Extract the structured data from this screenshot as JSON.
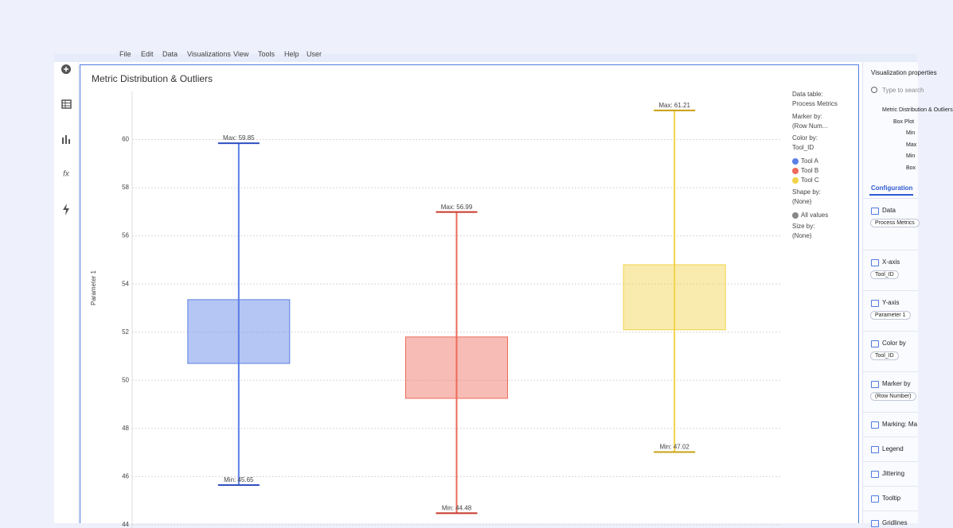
{
  "menu": [
    "File",
    "Edit",
    "Data",
    "Visualizations",
    "View",
    "Tools",
    "Help",
    "User"
  ],
  "chart_data": {
    "type": "box",
    "title": "Metric Distribution & Outliers",
    "y_label": "Parameter 1",
    "grid": true,
    "ylim": [
      43.6,
      62
    ],
    "yticks": [
      44,
      46,
      48,
      50,
      52,
      54,
      56,
      58,
      60
    ],
    "series": [
      {
        "name": "Tool A",
        "color": "#5b7fe6",
        "cap_color": "#2f4fc0",
        "min": 45.65,
        "q1": 50.7,
        "q3": 53.35,
        "max": 59.85,
        "min_label": "Min: 45.65",
        "max_label": "Max: 59.85"
      },
      {
        "name": "Tool B",
        "color": "#ee6a5a",
        "cap_color": "#c8392c",
        "min": 44.48,
        "q1": 49.25,
        "q3": 51.8,
        "max": 56.99,
        "min_label": "Min: 44.48",
        "max_label": "Max: 56.99"
      },
      {
        "name": "Tool C",
        "color": "#f2d34a",
        "cap_color": "#c9a012",
        "min": 47.02,
        "q1": 52.1,
        "q3": 54.8,
        "max": 61.21,
        "min_label": "Min: 47.02",
        "max_label": "Max: 61.21"
      }
    ],
    "legend": {
      "data_table_label": "Data table:",
      "data_table": "Process Metrics",
      "marker_by_label": "Marker by:",
      "marker_by": "(Row Num...",
      "color_by_label": "Color by:",
      "color_by": "Tool_ID",
      "shape_by_label": "Shape by:",
      "shape_by": "(None)",
      "shape_item": "All values",
      "size_by_label": "Size by:",
      "size_by": "(None)"
    }
  },
  "panel": {
    "title": "Visualization properties",
    "search": "Type to search",
    "tree": [
      "Metric Distribution & Outliers",
      "Box Plot",
      "Min",
      "Max",
      "Min",
      "Box"
    ],
    "tab": "Configuration",
    "sections": [
      {
        "name": "Data",
        "value": "Process Metrics"
      },
      {
        "name": "X-axis",
        "value": "Tool_ID"
      },
      {
        "name": "Y-axis",
        "value": "Parameter 1"
      },
      {
        "name": "Color by",
        "value": "Tool_ID"
      },
      {
        "name": "Marker by",
        "value": "(Row Number)"
      },
      {
        "name": "Marking: Ma"
      },
      {
        "name": "Legend"
      },
      {
        "name": "Jittering"
      },
      {
        "name": "Tooltip"
      },
      {
        "name": "Gridlines"
      }
    ]
  }
}
